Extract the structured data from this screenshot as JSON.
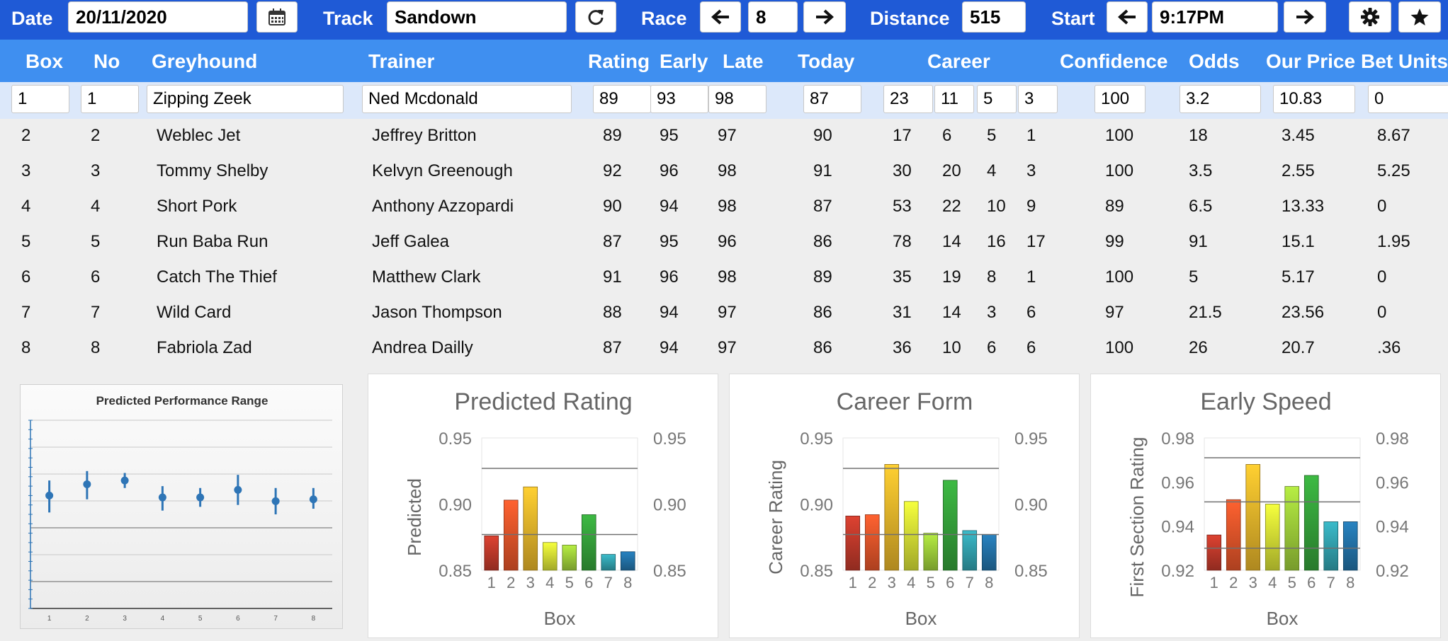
{
  "toolbar": {
    "date_label": "Date",
    "date_value": "20/11/2020",
    "track_label": "Track",
    "track_value": "Sandown",
    "race_label": "Race",
    "race_value": "8",
    "distance_label": "Distance",
    "distance_value": "515",
    "start_label": "Start",
    "start_value": "9:17PM",
    "icons": [
      "calendar-icon",
      "refresh-icon",
      "arrow-left-icon",
      "arrow-right-icon",
      "gear-icon",
      "star-icon"
    ]
  },
  "table": {
    "headers": {
      "box": "Box",
      "no": "No",
      "greyhound": "Greyhound",
      "trainer": "Trainer",
      "rating": "Rating",
      "early": "Early",
      "late": "Late",
      "today": "Today",
      "career": "Career",
      "confidence": "Confidence",
      "odds": "Odds",
      "our_price": "Our Price",
      "bet_units": "Bet Units"
    },
    "selected": {
      "box": "1",
      "no": "1",
      "greyhound": "Zipping Zeek",
      "trainer": "Ned Mcdonald",
      "rating": "89",
      "early": "93",
      "late": "98",
      "today": "87",
      "career": [
        "23",
        "11",
        "5",
        "3"
      ],
      "confidence": "100",
      "odds": "3.2",
      "our_price": "10.83",
      "bet_units": "0"
    },
    "rows": [
      {
        "box": "2",
        "no": "2",
        "greyhound": "Weblec Jet",
        "trainer": "Jeffrey Britton",
        "rating": "89",
        "early": "95",
        "late": "97",
        "today": "90",
        "career": [
          "17",
          "6",
          "5",
          "1"
        ],
        "confidence": "100",
        "odds": "18",
        "our_price": "3.45",
        "bet_units": "8.67"
      },
      {
        "box": "3",
        "no": "3",
        "greyhound": "Tommy Shelby",
        "trainer": "Kelvyn Greenough",
        "rating": "92",
        "early": "96",
        "late": "98",
        "today": "91",
        "career": [
          "30",
          "20",
          "4",
          "3"
        ],
        "confidence": "100",
        "odds": "3.5",
        "our_price": "2.55",
        "bet_units": "5.25"
      },
      {
        "box": "4",
        "no": "4",
        "greyhound": "Short Pork",
        "trainer": "Anthony Azzopardi",
        "rating": "90",
        "early": "94",
        "late": "98",
        "today": "87",
        "career": [
          "53",
          "22",
          "10",
          "9"
        ],
        "confidence": "89",
        "odds": "6.5",
        "our_price": "13.33",
        "bet_units": "0"
      },
      {
        "box": "5",
        "no": "5",
        "greyhound": "Run Baba Run",
        "trainer": "Jeff Galea",
        "rating": "87",
        "early": "95",
        "late": "96",
        "today": "86",
        "career": [
          "78",
          "14",
          "16",
          "17"
        ],
        "confidence": "99",
        "odds": "91",
        "our_price": "15.1",
        "bet_units": "1.95"
      },
      {
        "box": "6",
        "no": "6",
        "greyhound": "Catch The Thief",
        "trainer": "Matthew Clark",
        "rating": "91",
        "early": "96",
        "late": "98",
        "today": "89",
        "career": [
          "35",
          "19",
          "8",
          "1"
        ],
        "confidence": "100",
        "odds": "5",
        "our_price": "5.17",
        "bet_units": "0"
      },
      {
        "box": "7",
        "no": "7",
        "greyhound": "Wild Card",
        "trainer": "Jason Thompson",
        "rating": "88",
        "early": "94",
        "late": "97",
        "today": "86",
        "career": [
          "31",
          "14",
          "3",
          "6"
        ],
        "confidence": "97",
        "odds": "21.5",
        "our_price": "23.56",
        "bet_units": "0"
      },
      {
        "box": "8",
        "no": "8",
        "greyhound": "Fabriola Zad",
        "trainer": "Andrea Dailly",
        "rating": "87",
        "early": "94",
        "late": "97",
        "today": "86",
        "career": [
          "36",
          "10",
          "6",
          "6"
        ],
        "confidence": "100",
        "odds": "26",
        "our_price": "20.7",
        "bet_units": ".36"
      }
    ]
  },
  "chart_data": [
    {
      "type": "scatter",
      "title": "Predicted Performance Range",
      "categories": [
        "1",
        "2",
        "3",
        "4",
        "5",
        "6",
        "7",
        "8"
      ],
      "values": [
        0.6,
        0.66,
        0.68,
        0.59,
        0.59,
        0.63,
        0.57,
        0.58
      ],
      "high": [
        0.68,
        0.73,
        0.72,
        0.65,
        0.64,
        0.71,
        0.64,
        0.64
      ],
      "low": [
        0.51,
        0.58,
        0.64,
        0.52,
        0.54,
        0.55,
        0.5,
        0.53
      ],
      "ylim": [
        0,
        1
      ],
      "marker_color": "#2e75b6"
    },
    {
      "type": "bar",
      "title": "Predicted Rating",
      "xlabel": "Box",
      "ylabel": "Predicted",
      "categories": [
        "1",
        "2",
        "3",
        "4",
        "5",
        "6",
        "7",
        "8"
      ],
      "values": [
        0.876,
        0.903,
        0.913,
        0.871,
        0.869,
        0.892,
        0.862,
        0.864
      ],
      "ylim": [
        0.85,
        0.95
      ],
      "yticks": [
        "0.85",
        "0.90",
        "0.95"
      ],
      "reference_lines": [
        0.927,
        0.877
      ]
    },
    {
      "type": "bar",
      "title": "Career Form",
      "xlabel": "Box",
      "ylabel": "Career Rating",
      "categories": [
        "1",
        "2",
        "3",
        "4",
        "5",
        "6",
        "7",
        "8"
      ],
      "values": [
        0.891,
        0.892,
        0.93,
        0.902,
        0.878,
        0.918,
        0.88,
        0.877
      ],
      "ylim": [
        0.85,
        0.95
      ],
      "yticks": [
        "0.85",
        "0.90",
        "0.95"
      ],
      "reference_lines": [
        0.927,
        0.877
      ]
    },
    {
      "type": "bar",
      "title": "Early Speed",
      "xlabel": "Box",
      "ylabel": "First Section Rating",
      "categories": [
        "1",
        "2",
        "3",
        "4",
        "5",
        "6",
        "7",
        "8"
      ],
      "values": [
        0.936,
        0.952,
        0.968,
        0.95,
        0.958,
        0.963,
        0.942,
        0.942
      ],
      "ylim": [
        0.92,
        0.98
      ],
      "yticks": [
        "0.92",
        "0.94",
        "0.96",
        "0.98"
      ],
      "reference_lines": [
        0.971,
        0.951,
        0.93
      ]
    }
  ],
  "colors": {
    "topbar": "#1f5ad6",
    "header": "#3f8ff0",
    "selected_row": "#dce8fa",
    "table_bg": "#eeeeee",
    "bar_palette": [
      "#c0392b",
      "#e5552a",
      "#e8b52b",
      "#d6e035",
      "#9fcf3a",
      "#35a23a",
      "#33a3b0",
      "#2372a8"
    ]
  }
}
